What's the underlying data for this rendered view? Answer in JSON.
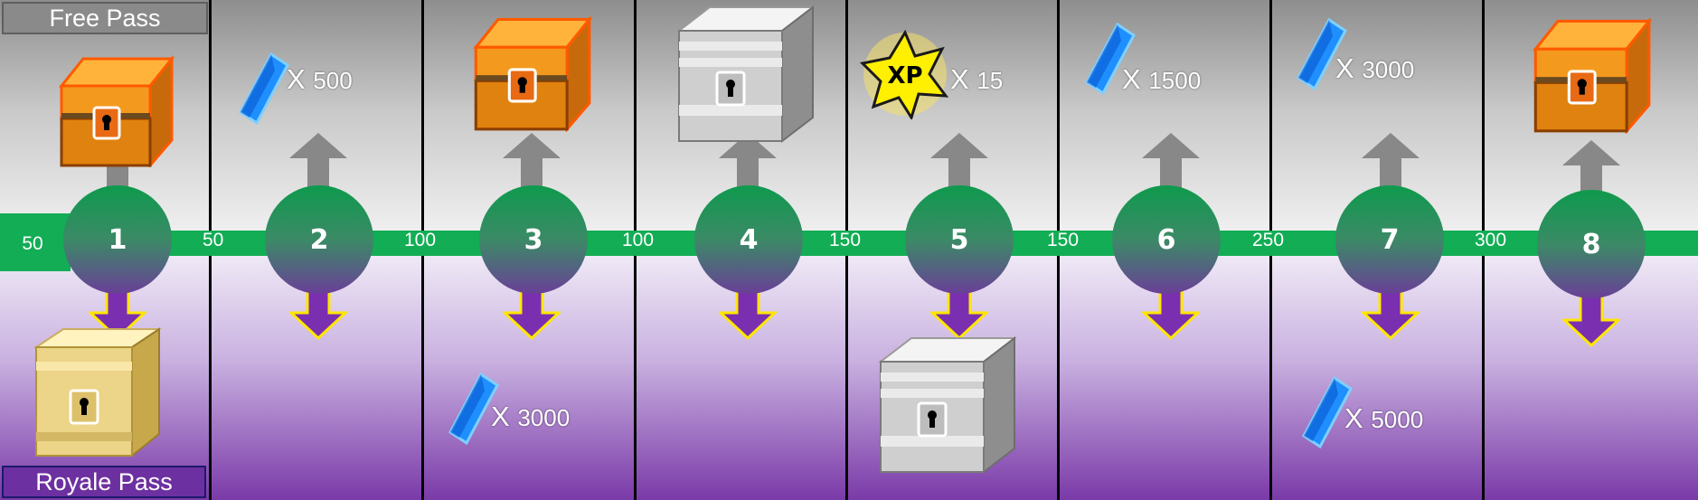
{
  "passes": {
    "free_label": "Free Pass",
    "royale_label": "Royale Pass"
  },
  "start_cost": "50",
  "tiers": [
    {
      "number": "1",
      "cost_to_next": "50",
      "free_reward": {
        "icon": "wooden-chest-icon"
      },
      "royale_reward": {
        "icon": "golden-chest-icon"
      }
    },
    {
      "number": "2",
      "cost_to_next": "100",
      "free_reward": {
        "icon": "blue-crystal-icon",
        "quantity": "500"
      }
    },
    {
      "number": "3",
      "cost_to_next": "100",
      "free_reward": {
        "icon": "wooden-chest-icon"
      },
      "royale_reward": {
        "icon": "blue-crystal-icon",
        "quantity": "3000"
      }
    },
    {
      "number": "4",
      "cost_to_next": "150",
      "free_reward": {
        "icon": "silver-chest-icon"
      }
    },
    {
      "number": "5",
      "cost_to_next": "150",
      "free_reward": {
        "icon": "xp-star-icon",
        "quantity": "15"
      },
      "royale_reward": {
        "icon": "silver-chest-icon"
      }
    },
    {
      "number": "6",
      "cost_to_next": "250",
      "free_reward": {
        "icon": "blue-crystal-icon",
        "quantity": "1500"
      }
    },
    {
      "number": "7",
      "cost_to_next": "300",
      "free_reward": {
        "icon": "blue-crystal-icon",
        "quantity": "3000"
      },
      "royale_reward": {
        "icon": "blue-crystal-icon",
        "quantity": "5000"
      }
    },
    {
      "number": "8",
      "free_reward": {
        "icon": "wooden-chest-icon"
      }
    }
  ],
  "quantity_prefix": "X",
  "xp_badge_text": "XP",
  "colors": {
    "track": "#13ad55",
    "arrow_up": "#888888",
    "arrow_down": "#7a2fb0",
    "arrow_down_outline": "#ffe600",
    "crystal": "#1f8fff"
  }
}
